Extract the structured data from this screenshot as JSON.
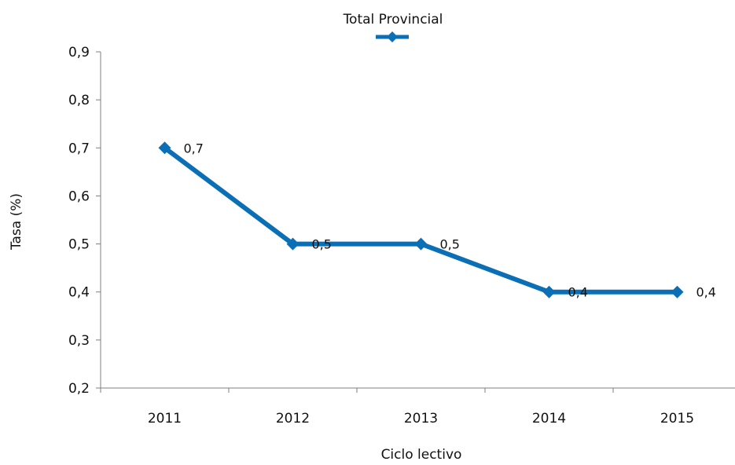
{
  "chart_data": {
    "type": "line",
    "title": "",
    "xlabel": "Ciclo lectivo",
    "ylabel": "Tasa (%)",
    "categories": [
      "2011",
      "2012",
      "2013",
      "2014",
      "2015"
    ],
    "series": [
      {
        "name": "Total Provincial",
        "values": [
          0.7,
          0.5,
          0.5,
          0.4,
          0.4
        ],
        "labels": [
          "0,7",
          "0,5",
          "0,5",
          "0,4",
          "0,4"
        ],
        "color": "#0b6fb5",
        "marker": "diamond"
      }
    ],
    "ylim": [
      0.2,
      0.9
    ],
    "yticks": [
      "0,2",
      "0,3",
      "0,4",
      "0,5",
      "0,6",
      "0,7",
      "0,8",
      "0,9"
    ],
    "grid": false,
    "legend": "top-center"
  }
}
